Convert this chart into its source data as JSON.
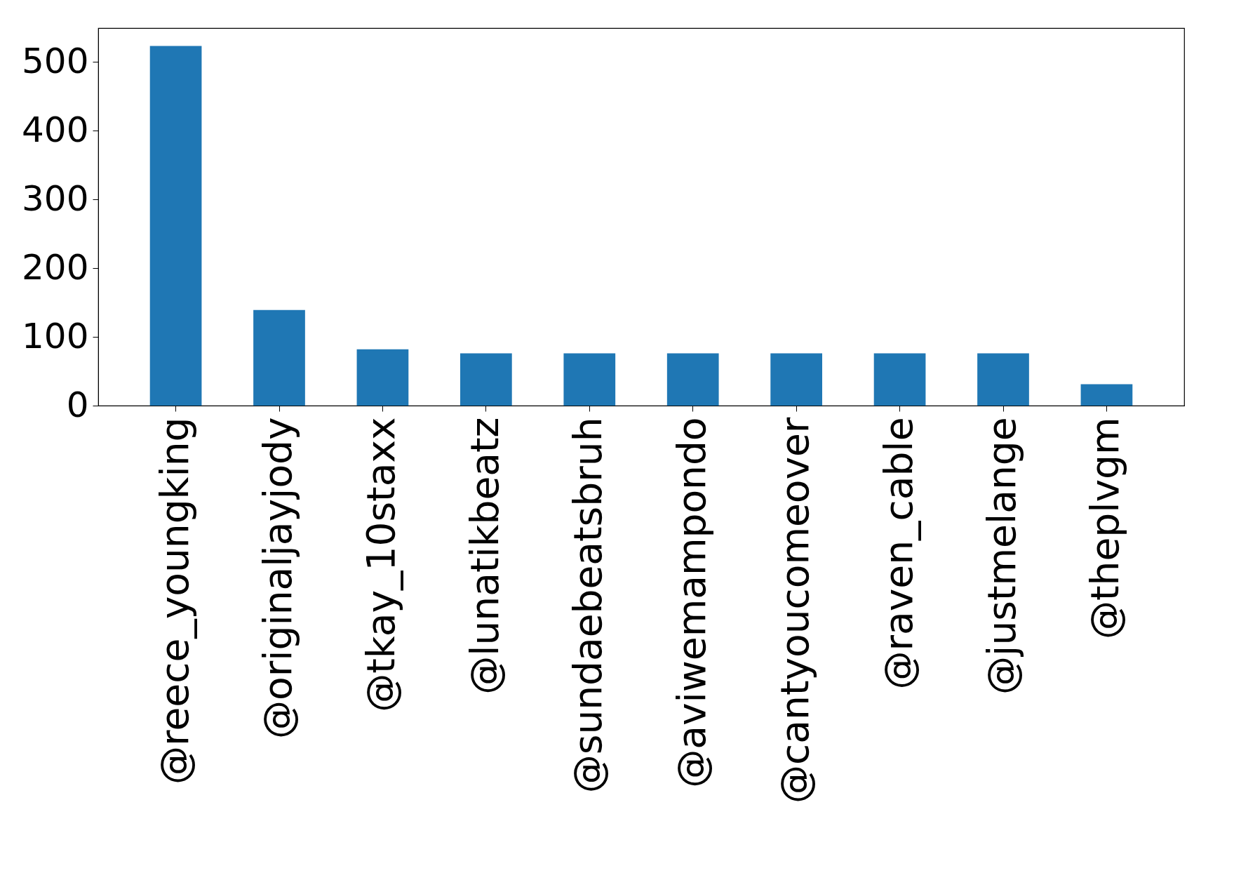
{
  "chart_data": {
    "type": "bar",
    "categories": [
      "@reece_youngking",
      "@originaljayjody",
      "@tkay_10staxx",
      "@lunatikbeatz",
      "@sundaebeatsbruh",
      "@aviwemampondo",
      "@cantyoucomeover",
      "@raven_cable",
      "@justmelange",
      "@theplvgm"
    ],
    "values": [
      523,
      139,
      82,
      76,
      76,
      76,
      76,
      76,
      76,
      31
    ],
    "color": "#1f77b4",
    "ylim": [
      0,
      549
    ],
    "yticks": [
      0,
      100,
      200,
      300,
      400,
      500
    ],
    "grid": false
  }
}
